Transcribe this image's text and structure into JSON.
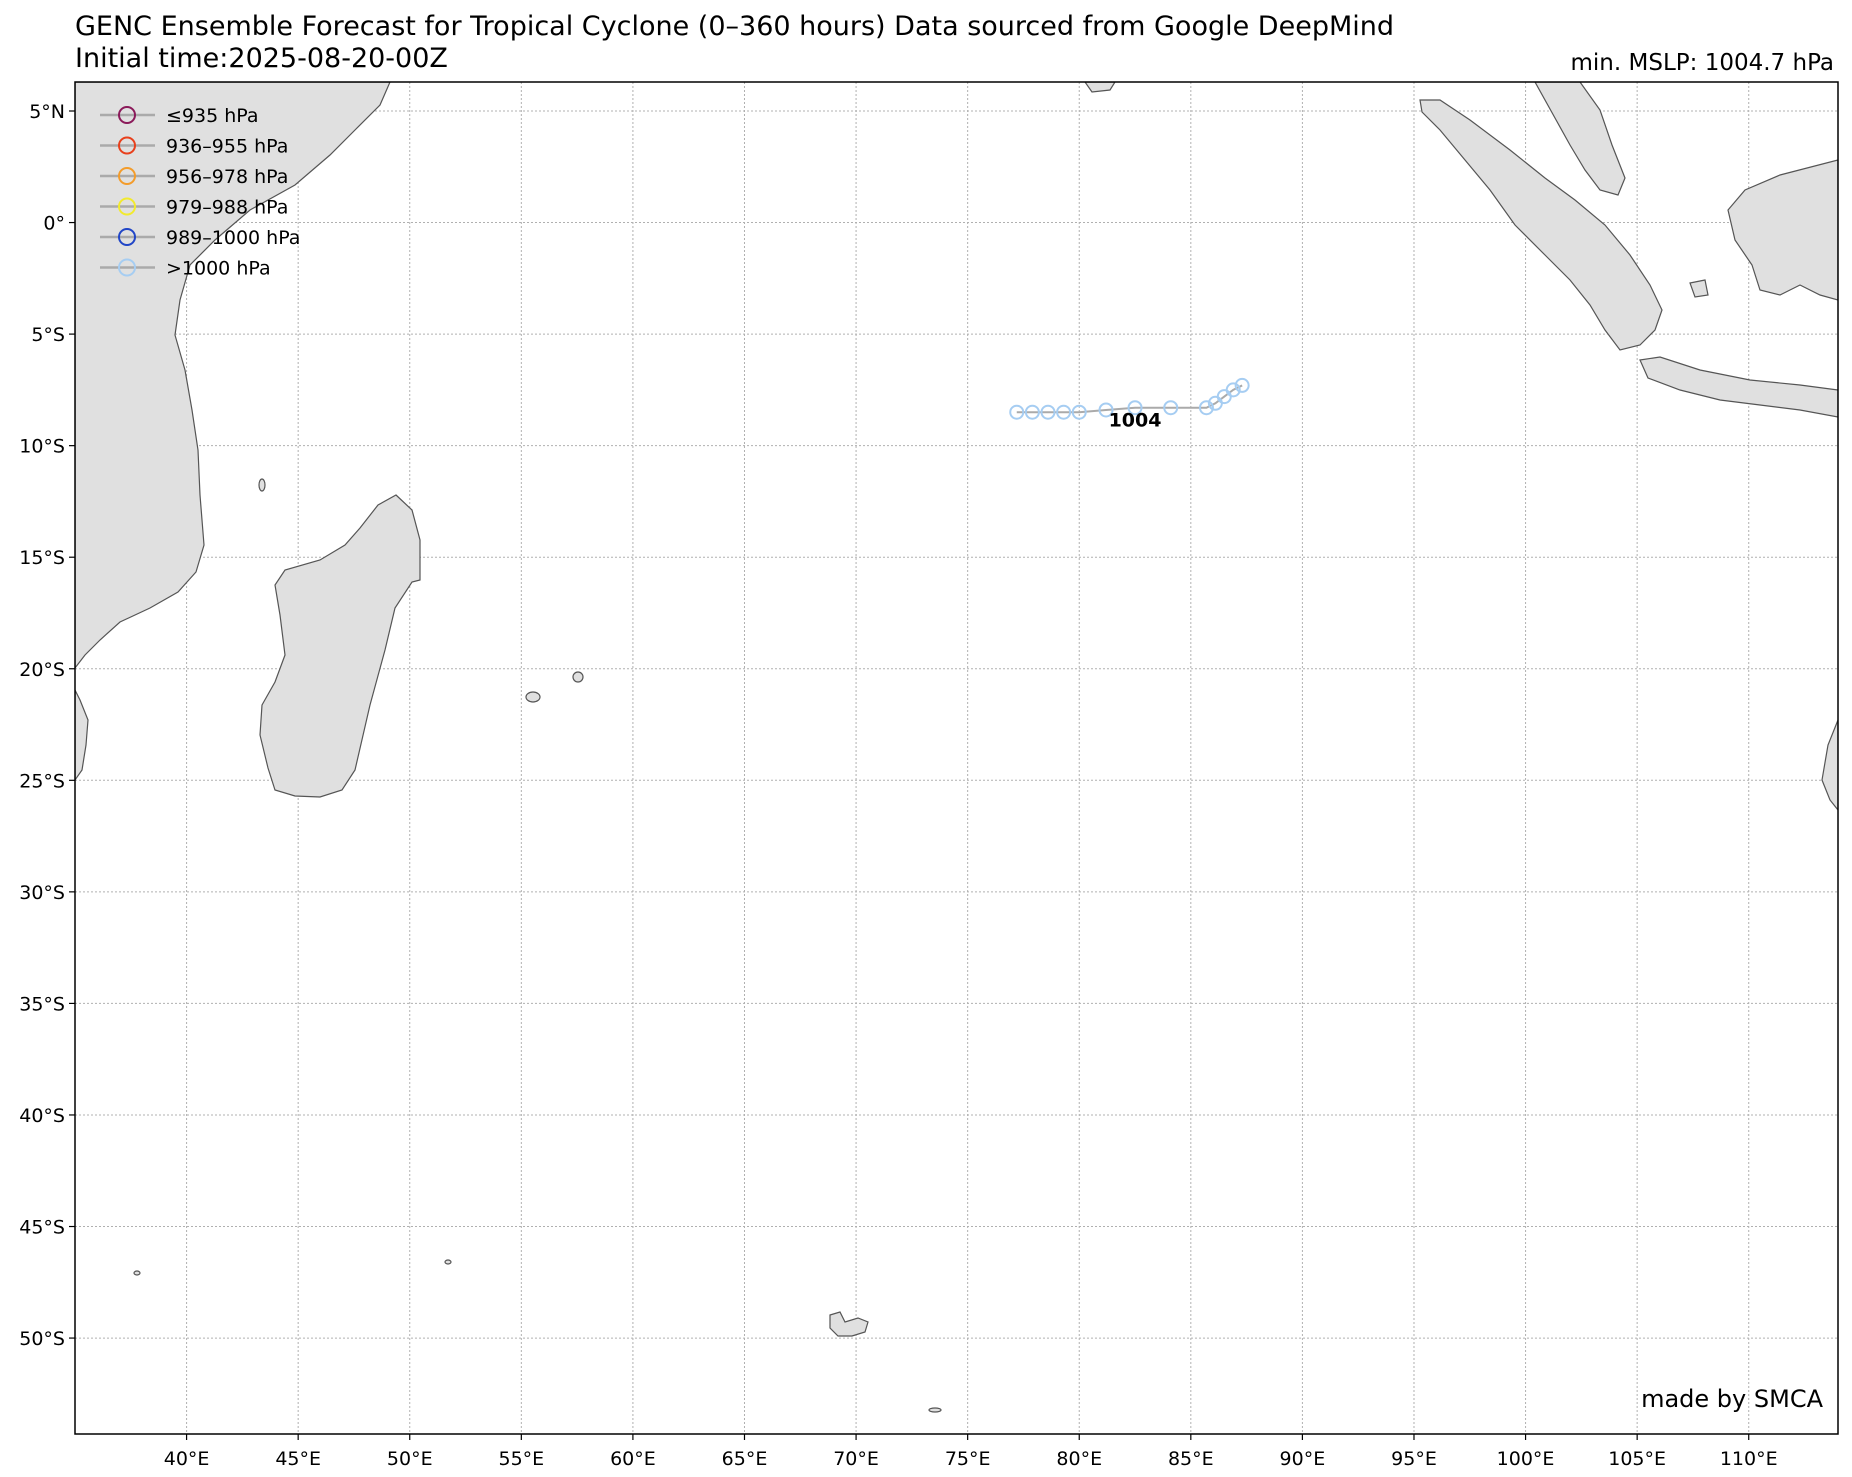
{
  "title_line1": "GENC Ensemble Forecast for Tropical Cyclone (0–360 hours) Data sourced from Google DeepMind",
  "title_line2": "Initial time:2025-08-20-00Z",
  "min_mslp_label": "min. MSLP: 1004.7 hPa",
  "credit": "made by SMCA",
  "map_extent": {
    "lon_min": 35,
    "lon_max": 114,
    "lat_min": -54.3,
    "lat_max": 6.3
  },
  "lon_ticks": [
    {
      "value": 40,
      "label": "40°E"
    },
    {
      "value": 45,
      "label": "45°E"
    },
    {
      "value": 50,
      "label": "50°E"
    },
    {
      "value": 55,
      "label": "55°E"
    },
    {
      "value": 60,
      "label": "60°E"
    },
    {
      "value": 65,
      "label": "65°E"
    },
    {
      "value": 70,
      "label": "70°E"
    },
    {
      "value": 75,
      "label": "75°E"
    },
    {
      "value": 80,
      "label": "80°E"
    },
    {
      "value": 85,
      "label": "85°E"
    },
    {
      "value": 90,
      "label": "90°E"
    },
    {
      "value": 95,
      "label": "95°E"
    },
    {
      "value": 100,
      "label": "100°E"
    },
    {
      "value": 105,
      "label": "105°E"
    },
    {
      "value": 110,
      "label": "110°E"
    }
  ],
  "lat_ticks": [
    {
      "value": 5,
      "label": "5°N"
    },
    {
      "value": 0,
      "label": "0°"
    },
    {
      "value": -5,
      "label": "5°S"
    },
    {
      "value": -10,
      "label": "10°S"
    },
    {
      "value": -15,
      "label": "15°S"
    },
    {
      "value": -20,
      "label": "20°S"
    },
    {
      "value": -25,
      "label": "25°S"
    },
    {
      "value": -30,
      "label": "30°S"
    },
    {
      "value": -35,
      "label": "35°S"
    },
    {
      "value": -40,
      "label": "40°S"
    },
    {
      "value": -45,
      "label": "45°S"
    },
    {
      "value": -50,
      "label": "50°S"
    }
  ],
  "legend": [
    {
      "label": "≤935 hPa",
      "color": "#8b1a5a"
    },
    {
      "label": "936–955 hPa",
      "color": "#e8401c"
    },
    {
      "label": "956–978 hPa",
      "color": "#f39c2b"
    },
    {
      "label": "979–988 hPa",
      "color": "#f2ea2e"
    },
    {
      "label": "989–1000 hPa",
      "color": "#2146c7"
    },
    {
      "label": ">1000 hPa",
      "color": "#a6cdf2"
    }
  ],
  "track": {
    "color": "#a6cdf2",
    "line_color": "#aaaaaa",
    "label": "1004",
    "label_lon": 82.5,
    "label_lat": -8.7,
    "points": [
      {
        "lon": 87.3,
        "lat": -7.3
      },
      {
        "lon": 86.9,
        "lat": -7.5
      },
      {
        "lon": 86.5,
        "lat": -7.8
      },
      {
        "lon": 86.1,
        "lat": -8.1
      },
      {
        "lon": 85.7,
        "lat": -8.3
      },
      {
        "lon": 84.1,
        "lat": -8.3
      },
      {
        "lon": 82.5,
        "lat": -8.3
      },
      {
        "lon": 81.2,
        "lat": -8.4
      },
      {
        "lon": 80.0,
        "lat": -8.5
      },
      {
        "lon": 79.3,
        "lat": -8.5
      },
      {
        "lon": 78.6,
        "lat": -8.5
      },
      {
        "lon": 77.9,
        "lat": -8.5
      },
      {
        "lon": 77.2,
        "lat": -8.5
      }
    ]
  }
}
